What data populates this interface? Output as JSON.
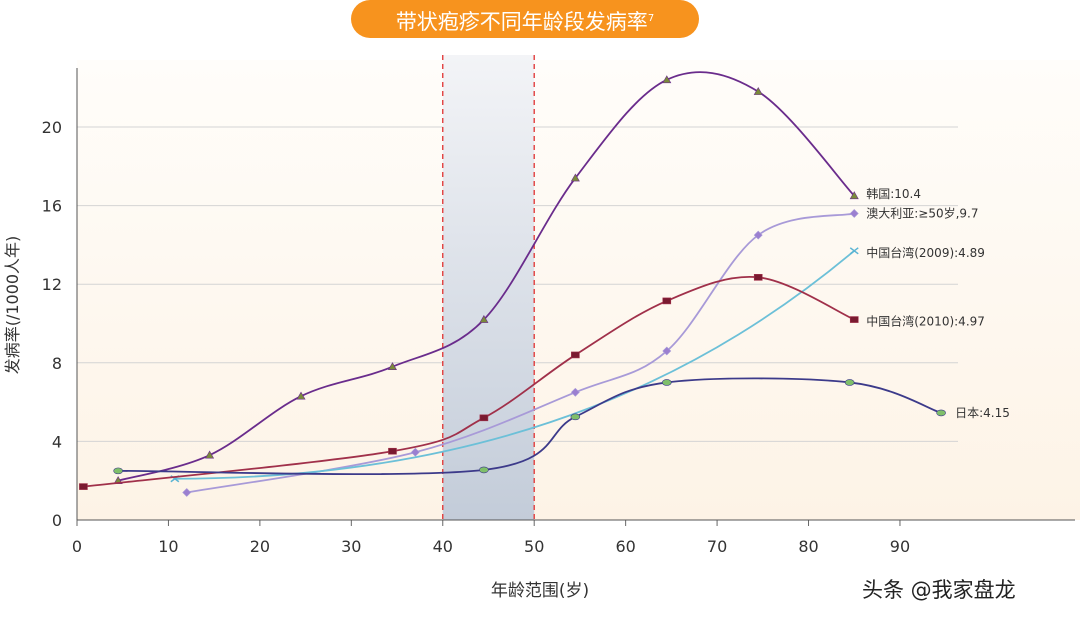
{
  "title": "带状疱疹不同年龄段发病率",
  "title_superscript": "7",
  "watermark": "头条 @我家盘龙",
  "chart_data": {
    "type": "line",
    "title": "带状疱疹不同年龄段发病率",
    "xlabel": "年龄范围(岁)",
    "ylabel": "发病率(/1000人年)",
    "xlim": [
      0,
      97
    ],
    "ylim": [
      0,
      23
    ],
    "xticks": [
      0,
      10,
      20,
      30,
      40,
      50,
      60,
      70,
      80,
      90
    ],
    "yticks": [
      0,
      4,
      8,
      12,
      16,
      20
    ],
    "grid": "horizontal",
    "highlight_band": {
      "from": 40,
      "to": 50,
      "color": "#c7cfdc",
      "border": "#e03030"
    },
    "series": [
      {
        "name": "韩国:10.4",
        "color": "#6a2c8c",
        "marker": "triangle",
        "marker_color": "#7a8a3a",
        "x": [
          4.5,
          14.5,
          24.5,
          34.5,
          44.5,
          54.5,
          64.5,
          74.5,
          85
        ],
        "y": [
          2.0,
          3.3,
          6.3,
          7.8,
          10.2,
          17.4,
          22.4,
          21.8,
          16.5
        ]
      },
      {
        "name": "澳大利亚:≥50岁,9.7",
        "color": "#a89ad8",
        "marker": "diamond",
        "marker_color": "#9b7fd0",
        "x": [
          12,
          37,
          54.5,
          64.5,
          74.5,
          85
        ],
        "y": [
          1.4,
          3.45,
          6.5,
          8.6,
          14.5,
          15.6
        ]
      },
      {
        "name": "中国台湾(2009):4.89",
        "color": "#6cc0d8",
        "marker": "x",
        "marker_color": "#5ab4d4",
        "x": [
          10.7,
          85
        ],
        "y": [
          2.1,
          13.7
        ]
      },
      {
        "name": "中国台湾(2010):4.97",
        "color": "#a0304a",
        "marker": "square",
        "marker_color": "#7a1a30",
        "x": [
          0.7,
          34.5,
          44.5,
          54.5,
          64.5,
          74.5,
          85
        ],
        "y": [
          1.7,
          3.5,
          5.2,
          8.4,
          11.15,
          12.35,
          10.2
        ]
      },
      {
        "name": "日本:4.15",
        "color": "#3c3a8a",
        "marker": "circle",
        "marker_color": "#7fbf6a",
        "x": [
          4.5,
          44.5,
          54.5,
          64.5,
          84.5,
          94.5
        ],
        "y": [
          2.5,
          2.55,
          5.25,
          7.0,
          7.0,
          5.45
        ]
      }
    ]
  }
}
